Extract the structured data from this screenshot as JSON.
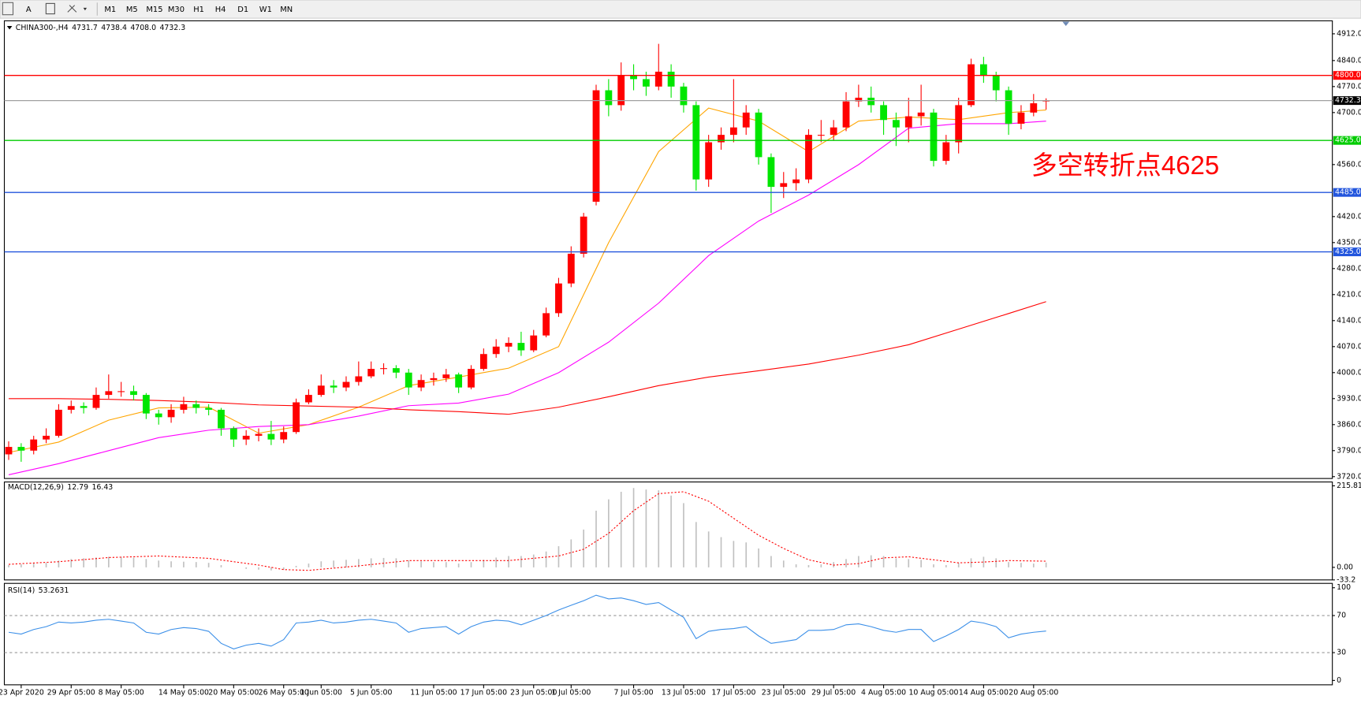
{
  "toolbar": {
    "tools": [
      "A"
    ],
    "timeframes": [
      "M1",
      "M5",
      "M15",
      "M30",
      "H1",
      "H4",
      "D1",
      "W1",
      "MN"
    ]
  },
  "chart_data": [
    {
      "type": "candlestick",
      "symbol": "CHINA300-,H4",
      "header_values": [
        "4731.7",
        "4738.4",
        "4708.0",
        "4732.3"
      ],
      "open": [
        3780,
        3800,
        3790,
        3820,
        3830,
        3900,
        3910,
        3905,
        3940,
        3950,
        3950,
        3940,
        3890,
        3880,
        3900,
        3915,
        3905,
        3900,
        3850,
        3820,
        3830,
        3835,
        3820,
        3840,
        3920,
        3940,
        3965,
        3960,
        3975,
        3990,
        4010,
        4012,
        4000,
        3960,
        3980,
        3985,
        3995,
        3960,
        4010,
        4050,
        4070,
        4080,
        4060,
        4100,
        4160,
        4240,
        4320,
        4460,
        4760,
        4720,
        4800,
        4790,
        4770,
        4810,
        4770,
        4720,
        4520,
        4620,
        4640,
        4660,
        4700,
        4580,
        4500,
        4510,
        4520,
        4640,
        4640,
        4660,
        4730,
        4740,
        4720,
        4680,
        4660,
        4690,
        4700,
        4570,
        4620,
        4720,
        4830,
        4800,
        4760,
        4670,
        4700,
        4731.7
      ],
      "high": [
        3815,
        3810,
        3830,
        3850,
        3915,
        3925,
        3920,
        3960,
        3995,
        3975,
        3965,
        3945,
        3900,
        3915,
        3935,
        3925,
        3915,
        3905,
        3855,
        3845,
        3850,
        3870,
        3855,
        3930,
        3955,
        3995,
        3980,
        3990,
        4030,
        4030,
        4025,
        4020,
        4010,
        3995,
        4000,
        4010,
        4000,
        4020,
        4065,
        4090,
        4095,
        4110,
        4115,
        4175,
        4255,
        4340,
        4430,
        4775,
        4790,
        4835,
        4830,
        4810,
        4885,
        4830,
        4780,
        4730,
        4640,
        4660,
        4790,
        4720,
        4710,
        4590,
        4540,
        4550,
        4655,
        4680,
        4680,
        4755,
        4775,
        4770,
        4730,
        4700,
        4740,
        4775,
        4710,
        4640,
        4740,
        4845,
        4850,
        4810,
        4770,
        4720,
        4750,
        4738.4
      ],
      "low": [
        3765,
        3760,
        3780,
        3810,
        3825,
        3890,
        3890,
        3900,
        3930,
        3935,
        3925,
        3875,
        3860,
        3865,
        3890,
        3890,
        3885,
        3830,
        3800,
        3805,
        3815,
        3805,
        3810,
        3835,
        3915,
        3935,
        3945,
        3950,
        3965,
        3985,
        3995,
        3985,
        3940,
        3950,
        3965,
        3975,
        3945,
        3955,
        4005,
        4040,
        4055,
        4045,
        4055,
        4095,
        4150,
        4230,
        4310,
        4450,
        4690,
        4705,
        4760,
        4745,
        4760,
        4740,
        4700,
        4490,
        4500,
        4600,
        4620,
        4640,
        4560,
        4430,
        4470,
        4490,
        4510,
        4620,
        4625,
        4650,
        4715,
        4700,
        4640,
        4610,
        4620,
        4665,
        4555,
        4560,
        4590,
        4715,
        4780,
        4730,
        4640,
        4655,
        4690,
        4708.0
      ],
      "close": [
        3800,
        3790,
        3820,
        3830,
        3900,
        3910,
        3905,
        3940,
        3950,
        3950,
        3940,
        3890,
        3880,
        3900,
        3915,
        3905,
        3900,
        3850,
        3820,
        3830,
        3835,
        3820,
        3840,
        3920,
        3940,
        3965,
        3960,
        3975,
        3990,
        4010,
        4012,
        4000,
        3960,
        3980,
        3985,
        3995,
        3960,
        4010,
        4050,
        4070,
        4080,
        4060,
        4100,
        4160,
        4240,
        4320,
        4420,
        4760,
        4720,
        4800,
        4790,
        4770,
        4810,
        4770,
        4720,
        4520,
        4620,
        4640,
        4660,
        4700,
        4580,
        4500,
        4510,
        4520,
        4640,
        4640,
        4660,
        4730,
        4740,
        4720,
        4680,
        4660,
        4690,
        4700,
        4570,
        4620,
        4720,
        4830,
        4800,
        4760,
        4670,
        4700,
        4725,
        4732.3
      ],
      "up_color": "#ff0000",
      "down_color": "#00e600",
      "series": [
        {
          "color": "#ffa500",
          "x": [
            0,
            4,
            8,
            12,
            16,
            20,
            24,
            28,
            32,
            36,
            40,
            44,
            48,
            52,
            56,
            60,
            64,
            68,
            72,
            76,
            80,
            83
          ],
          "values": [
            3785,
            3813,
            3872,
            3905,
            3907,
            3837,
            3860,
            3907,
            3965,
            3988,
            4012,
            4070,
            4350,
            4595,
            4712,
            4677,
            4595,
            4677,
            4688,
            4681,
            4700,
            4707
          ]
        },
        {
          "color": "#ff00ff",
          "x": [
            0,
            4,
            8,
            12,
            16,
            20,
            24,
            28,
            32,
            36,
            40,
            44,
            48,
            52,
            56,
            60,
            64,
            68,
            72,
            76,
            80,
            83
          ],
          "values": [
            3725,
            3755,
            3790,
            3825,
            3845,
            3855,
            3860,
            3883,
            3911,
            3918,
            3942,
            4000,
            4082,
            4187,
            4315,
            4408,
            4478,
            4560,
            4658,
            4670,
            4670,
            4677
          ]
        },
        {
          "color": "#ff0000",
          "x": [
            0,
            4,
            8,
            12,
            16,
            20,
            24,
            28,
            32,
            36,
            40,
            44,
            48,
            52,
            56,
            60,
            64,
            68,
            72,
            76,
            80,
            83
          ],
          "values": [
            3930,
            3930,
            3928,
            3925,
            3920,
            3913,
            3910,
            3907,
            3900,
            3895,
            3888,
            3907,
            3935,
            3965,
            3988,
            4005,
            4023,
            4047,
            4075,
            4117,
            4159,
            4191
          ]
        }
      ],
      "ylim": [
        3715,
        4947
      ],
      "yticks": [
        {
          "value": 4912,
          "label": "4912.0"
        },
        {
          "value": 4840,
          "label": "4840.0"
        },
        {
          "value": 4770,
          "label": "4770.0"
        },
        {
          "value": 4700,
          "label": "4700.0"
        },
        {
          "value": 4560,
          "label": "4560.0"
        },
        {
          "value": 4420,
          "label": "4420.0"
        },
        {
          "value": 4350,
          "label": "4350.0"
        },
        {
          "value": 4280,
          "label": "4280.0"
        },
        {
          "value": 4210,
          "label": "4210.0"
        },
        {
          "value": 4140,
          "label": "4140.0"
        },
        {
          "value": 4070,
          "label": "4070.0"
        },
        {
          "value": 4000,
          "label": "4000.0"
        },
        {
          "value": 3930,
          "label": "3930.0"
        },
        {
          "value": 3860,
          "label": "3860.0"
        },
        {
          "value": 3790,
          "label": "3790.0"
        },
        {
          "value": 3720,
          "label": "3720.0"
        }
      ],
      "levels": [
        {
          "value": 4800,
          "label": "4800.0",
          "color": "#ff0000",
          "label_bg": "#ff0000"
        },
        {
          "value": 4732.3,
          "color": "#a0a0a0",
          "label_bg": "#000000"
        },
        {
          "value": 4625,
          "label": "4625.0",
          "color": "#00cc00",
          "label_bg": "#00cc00"
        },
        {
          "value": 4485,
          "label": "4485.0",
          "color": "#2255dd",
          "label_bg": "#2255dd"
        },
        {
          "value": 4325,
          "label": "4325.0",
          "color": "#2255dd",
          "label_bg": "#2255dd"
        }
      ],
      "annotation": "多空转折点4625",
      "annotation_color": "#ff0000"
    },
    {
      "type": "macd",
      "title": "MACD(12,26,9)",
      "values": [
        6,
        8,
        10,
        12,
        18,
        22,
        24,
        26,
        28,
        28,
        26,
        22,
        18,
        16,
        15,
        14,
        12,
        6,
        0,
        -4,
        -6,
        -8,
        -6,
        4,
        10,
        16,
        18,
        20,
        22,
        24,
        25,
        24,
        18,
        16,
        14,
        14,
        10,
        14,
        20,
        26,
        30,
        30,
        34,
        42,
        56,
        74,
        100,
        150,
        180,
        200,
        210,
        206,
        204,
        190,
        170,
        120,
        95,
        80,
        70,
        66,
        50,
        30,
        18,
        8,
        6,
        8,
        14,
        22,
        30,
        32,
        30,
        24,
        22,
        20,
        8,
        6,
        12,
        24,
        28,
        24,
        14,
        12,
        10,
        12.79
      ],
      "color": "#c0c0c0",
      "signal": {
        "color": "#ff0000",
        "x": [
          0,
          4,
          8,
          12,
          16,
          20,
          22,
          24,
          28,
          32,
          36,
          40,
          44,
          46,
          48,
          50,
          52,
          54,
          56,
          58,
          60,
          62,
          64,
          66,
          68,
          70,
          72,
          74,
          76,
          78,
          80,
          83
        ],
        "values": [
          8,
          15,
          26,
          30,
          24,
          6,
          -6,
          -8,
          4,
          18,
          18,
          18,
          30,
          48,
          90,
          150,
          195,
          200,
          175,
          130,
          85,
          50,
          20,
          6,
          10,
          25,
          28,
          20,
          12,
          14,
          18,
          16.43
        ]
      },
      "ylim": [
        -33.2,
        226
      ],
      "yticks": [
        215.81,
        {
          "value": 0,
          "label": "0.00"
        },
        -33.2
      ]
    },
    {
      "type": "line",
      "title": "RSI(14)",
      "values": [
        52,
        50,
        55,
        58,
        63,
        62,
        63,
        65,
        66,
        64,
        62,
        52,
        50,
        55,
        57,
        56,
        53,
        40,
        34,
        38,
        40,
        37,
        44,
        62,
        63,
        65,
        62,
        63,
        65,
        66,
        64,
        62,
        52,
        56,
        57,
        58,
        50,
        58,
        63,
        65,
        64,
        60,
        65,
        70,
        76,
        81,
        86,
        92,
        88,
        89,
        86,
        82,
        84,
        76,
        68,
        45,
        53,
        55,
        56,
        58,
        48,
        40,
        42,
        44,
        54,
        54,
        55,
        60,
        61,
        58,
        54,
        52,
        55,
        55,
        42,
        48,
        55,
        64,
        62,
        58,
        46,
        50,
        52,
        53.2631
      ],
      "color": "#3b8fe8",
      "ylim": [
        -4.7,
        104.7
      ],
      "yticks": [
        100,
        70,
        30,
        0
      ],
      "levels": [
        70,
        30
      ],
      "categories": [
        null,
        "23 Apr 2020",
        null,
        null,
        null,
        "29 Apr 05:00",
        null,
        null,
        null,
        "8 May 05:00",
        null,
        null,
        null,
        null,
        "14 May 05:00",
        null,
        null,
        null,
        "20 May 05:00",
        null,
        null,
        null,
        "26 May 05:00",
        null,
        null,
        "1 Jun 05:00",
        null,
        null,
        null,
        "5 Jun 05:00",
        null,
        null,
        null,
        null,
        "11 Jun 05:00",
        null,
        null,
        null,
        "17 Jun 05:00",
        null,
        null,
        null,
        "23 Jun 05:00",
        null,
        null,
        "1 Jul 05:00",
        null,
        null,
        null,
        null,
        "7 Jul 05:00",
        null,
        null,
        null,
        "13 Jul 05:00",
        null,
        null,
        null,
        "17 Jul 05:00",
        null,
        null,
        null,
        "23 Jul 05:00",
        null,
        null,
        null,
        "29 Jul 05:00",
        null,
        null,
        null,
        "4 Aug 05:00",
        null,
        null,
        null,
        "10 Aug 05:00",
        null,
        null,
        null,
        "14 Aug 05:00",
        null,
        null,
        null,
        "20 Aug 05:00",
        null
      ]
    }
  ]
}
